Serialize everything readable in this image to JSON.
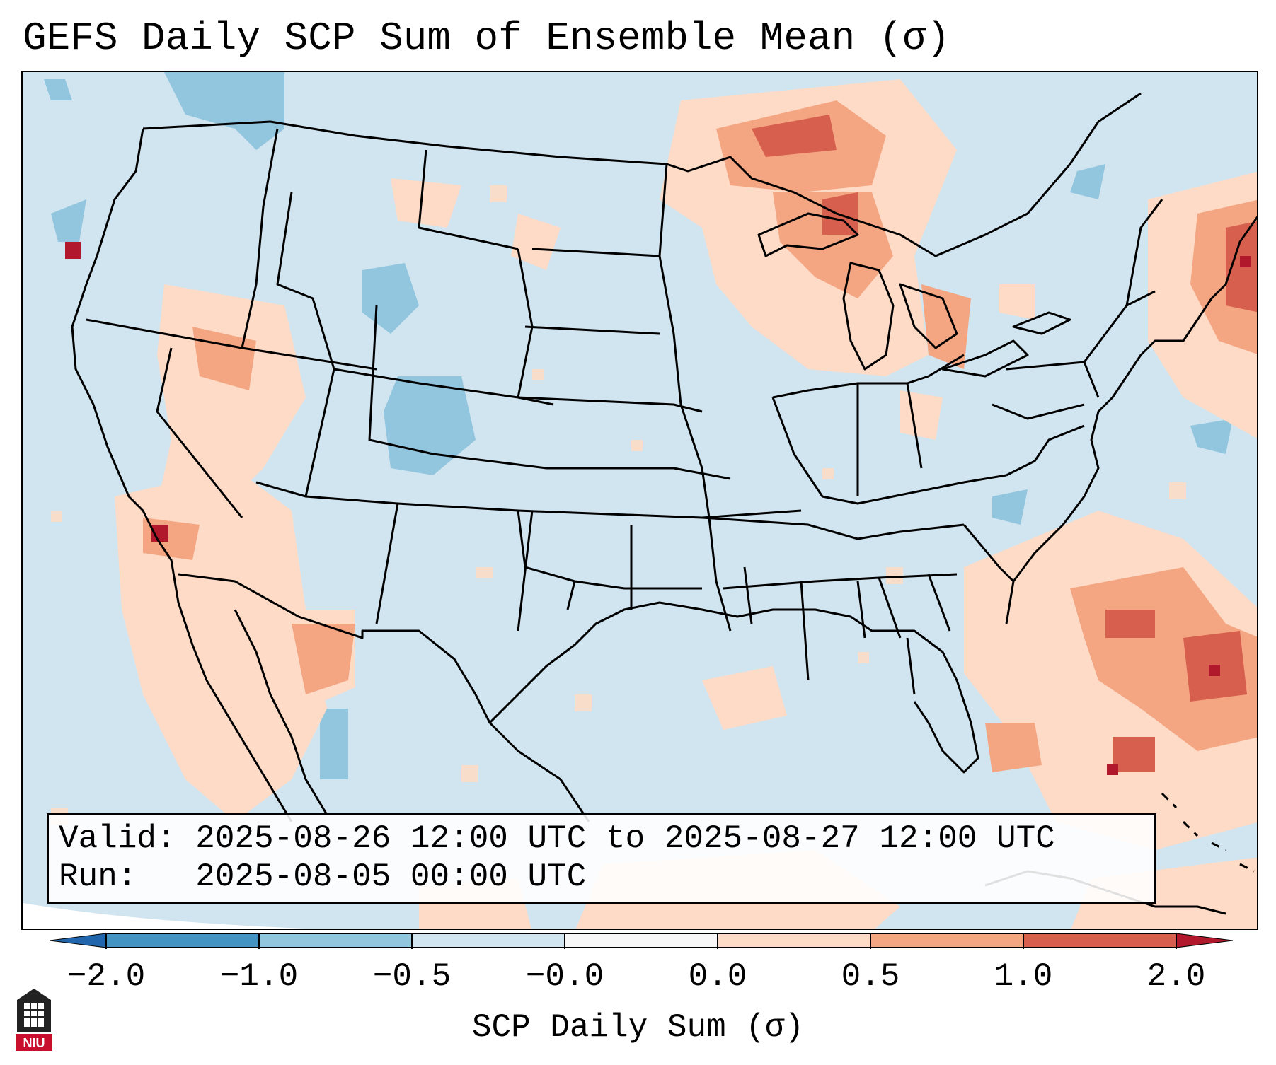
{
  "title": "GEFS Daily SCP Sum of Ensemble Mean (σ)",
  "info": {
    "valid": "Valid: 2025-08-26 12:00 UTC to 2025-08-27 12:00 UTC",
    "run": "Run:   2025-08-05 00:00 UTC"
  },
  "colorbar": {
    "label": "SCP Daily Sum (σ)",
    "ticks": [
      "−2.0",
      "−1.0",
      "−0.5",
      "−0.0",
      "0.0",
      "0.5",
      "1.0",
      "2.0"
    ],
    "bins": [
      {
        "from": "-2.0",
        "to": "-1.0",
        "color": "#4393c3"
      },
      {
        "from": "-1.0",
        "to": "-0.5",
        "color": "#92c5de"
      },
      {
        "from": "-0.5",
        "to": "-0.0",
        "color": "#d1e5f0"
      },
      {
        "from": "-0.0",
        "to": "0.0",
        "color": "#f7f7f7"
      },
      {
        "from": "0.0",
        "to": "0.5",
        "color": "#fddbc7"
      },
      {
        "from": "0.5",
        "to": "1.0",
        "color": "#f4a582"
      },
      {
        "from": "1.0",
        "to": "2.0",
        "color": "#d6604d"
      }
    ],
    "under_color": "#2166ac",
    "over_color": "#b2182b"
  },
  "logo": {
    "text": "NIU"
  },
  "map": {
    "projection": "Lambert Conformal, CONUS",
    "background_color": "#d1e5f0",
    "positive_color": "#fddbc7",
    "moderate_positive_color": "#f4a582",
    "strong_positive_color": "#d6604d",
    "extreme_color": "#b2182b",
    "negative_color": "#92c5de"
  }
}
